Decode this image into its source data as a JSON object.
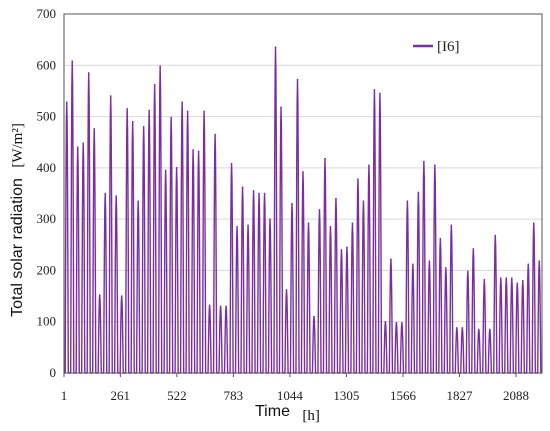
{
  "chart_data": {
    "type": "line",
    "title": "",
    "xlabel": "Time",
    "xunit": "[h]",
    "ylabel": "Total solar radiation",
    "yunit": "[W/m²]",
    "ylim": [
      0,
      700
    ],
    "xlim": [
      1,
      2208
    ],
    "y_ticks": [
      "0",
      "100",
      "200",
      "300",
      "400",
      "500",
      "600",
      "700"
    ],
    "x_ticks": [
      "1",
      "261",
      "522",
      "783",
      "1044",
      "1305",
      "1566",
      "1827",
      "2088"
    ],
    "grid": true,
    "legend_position": "top-right",
    "series": [
      {
        "name": "[I6]",
        "color": "#7a2fa0",
        "x_unit_note": "",
        "daily_peaks": [
          528,
          608,
          440,
          448,
          585,
          476,
          152,
          350,
          540,
          345,
          150,
          515,
          490,
          335,
          480,
          512,
          562,
          598,
          395,
          498,
          400,
          528,
          510,
          435,
          432,
          510,
          132,
          465,
          130,
          130,
          408,
          285,
          362,
          288,
          355,
          350,
          350,
          300,
          635,
          518,
          162,
          330,
          572,
          392,
          292,
          110,
          318,
          418,
          285,
          340,
          240,
          245,
          292,
          378,
          335,
          405,
          552,
          545,
          100,
          222,
          98,
          98,
          335,
          212,
          352,
          412,
          218,
          405,
          262,
          205,
          288,
          88,
          88,
          198,
          242,
          85,
          182,
          85,
          268,
          185,
          185,
          185,
          175,
          180,
          212,
          292,
          218
        ]
      }
    ]
  }
}
